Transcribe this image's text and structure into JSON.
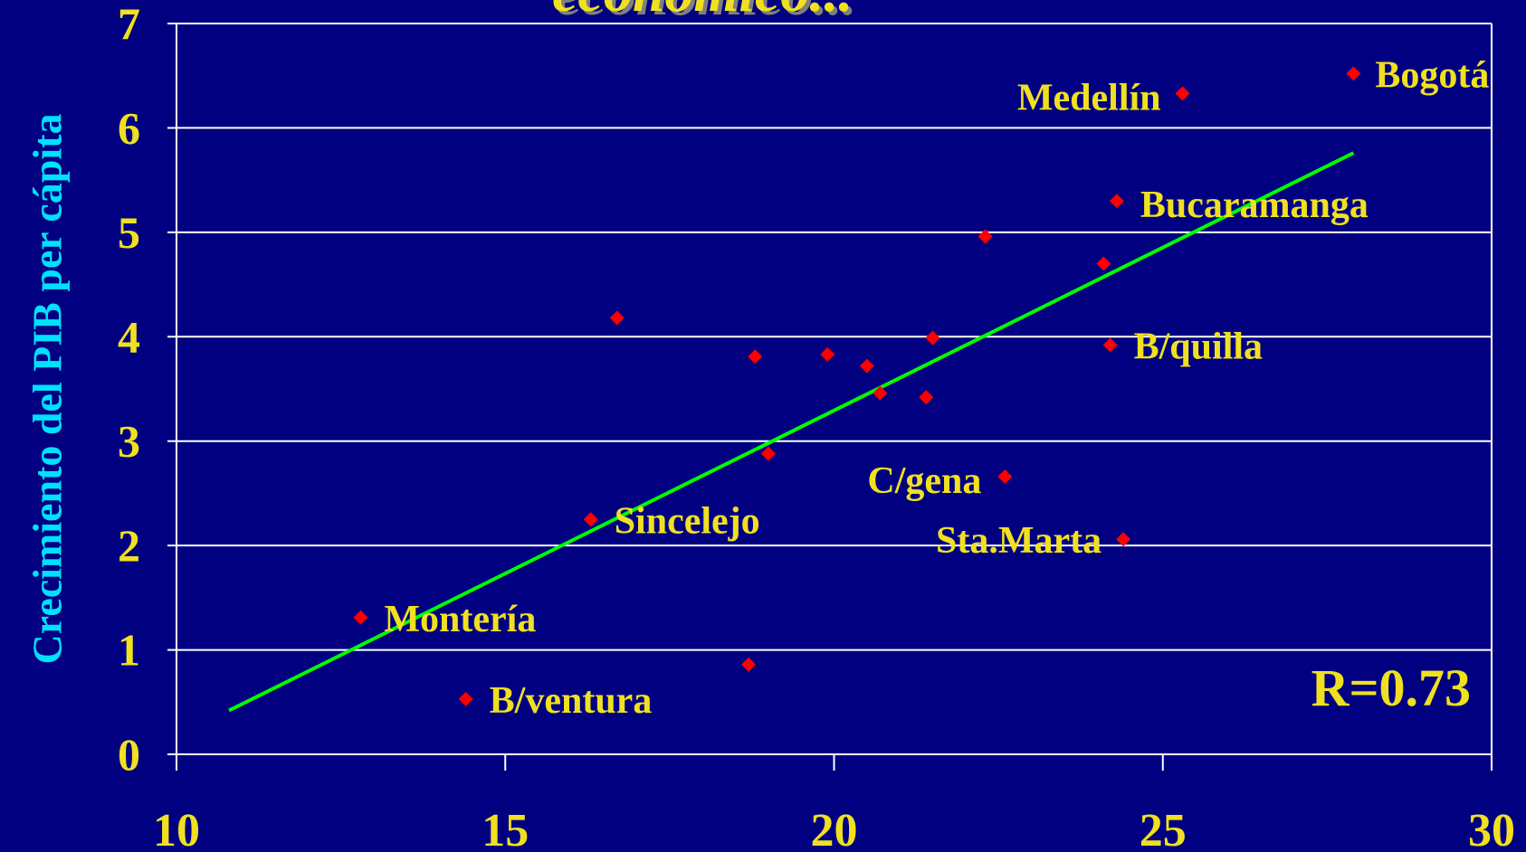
{
  "title": "económico...",
  "chart_data": {
    "type": "scatter",
    "xlabel": "",
    "ylabel": "Crecimiento del PIB per cápita",
    "xlim": [
      10,
      30
    ],
    "ylim": [
      0,
      7
    ],
    "x_ticks": [
      "10",
      "15",
      "20",
      "25",
      "30"
    ],
    "y_ticks": [
      "0",
      "1",
      "2",
      "3",
      "4",
      "5",
      "6",
      "7"
    ],
    "grid": "horizontal",
    "points": [
      {
        "x": 27.9,
        "y": 6.52,
        "label": "Bogotá"
      },
      {
        "x": 25.3,
        "y": 6.33,
        "label": "Medellín"
      },
      {
        "x": 24.3,
        "y": 5.3,
        "label": "Bucaramanga"
      },
      {
        "x": 22.3,
        "y": 4.96,
        "label": ""
      },
      {
        "x": 24.1,
        "y": 4.7,
        "label": ""
      },
      {
        "x": 16.7,
        "y": 4.18,
        "label": ""
      },
      {
        "x": 21.5,
        "y": 3.99,
        "label": ""
      },
      {
        "x": 24.2,
        "y": 3.92,
        "label": "B/quilla"
      },
      {
        "x": 19.9,
        "y": 3.83,
        "label": ""
      },
      {
        "x": 18.8,
        "y": 3.81,
        "label": ""
      },
      {
        "x": 20.5,
        "y": 3.72,
        "label": ""
      },
      {
        "x": 20.7,
        "y": 3.46,
        "label": ""
      },
      {
        "x": 21.4,
        "y": 3.42,
        "label": ""
      },
      {
        "x": 19.0,
        "y": 2.88,
        "label": ""
      },
      {
        "x": 22.6,
        "y": 2.66,
        "label": "C/gena"
      },
      {
        "x": 16.3,
        "y": 2.25,
        "label": "Sincelejo"
      },
      {
        "x": 24.4,
        "y": 2.06,
        "label": "Sta.Marta"
      },
      {
        "x": 12.8,
        "y": 1.31,
        "label": "Montería"
      },
      {
        "x": 18.7,
        "y": 0.86,
        "label": ""
      },
      {
        "x": 14.4,
        "y": 0.53,
        "label": "B/ventura"
      }
    ],
    "trendline": {
      "x": [
        10.8,
        27.9
      ],
      "y": [
        0.42,
        5.76
      ]
    },
    "annotation": "R=0.73",
    "colors": {
      "background": "#000080",
      "point": "#ff0000",
      "trendline": "#00ff00",
      "grid": "#ffffff",
      "label": "#f0e020",
      "tick": "#f0e020",
      "ylabel": "#00e0ff"
    }
  }
}
